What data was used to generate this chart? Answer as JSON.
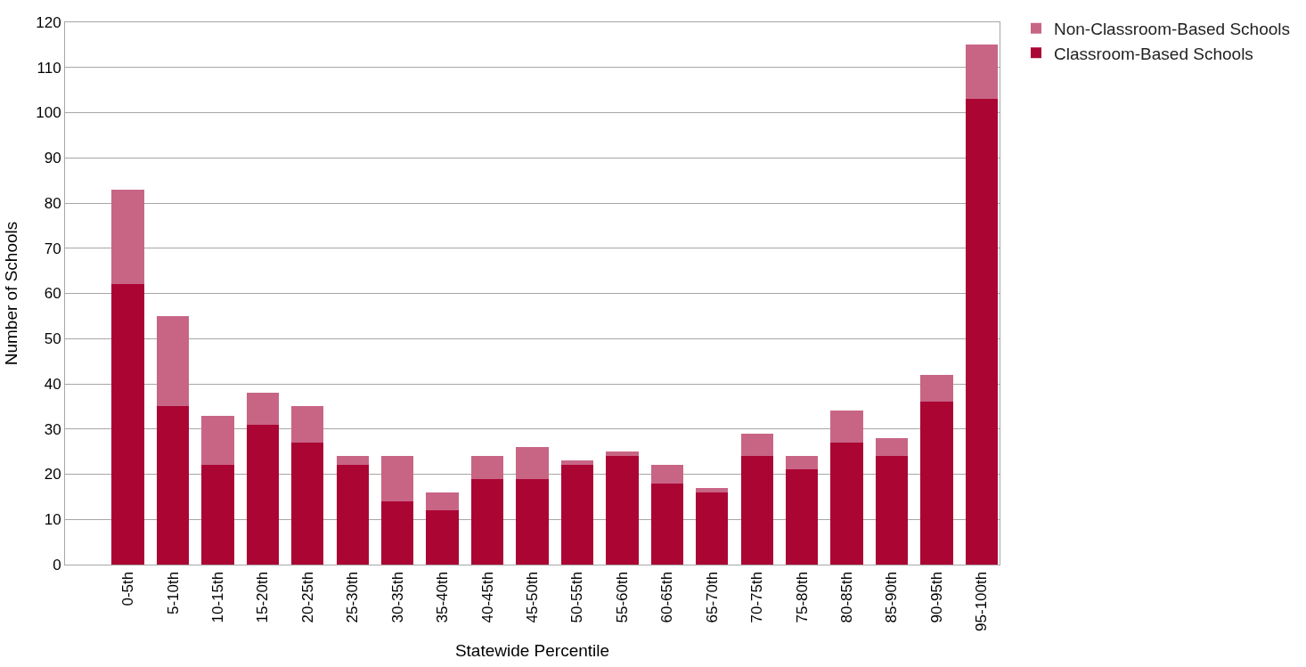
{
  "chart_data": {
    "type": "bar",
    "stacked": true,
    "xlabel": "Statewide Percentile",
    "ylabel": "Number of Schools",
    "categories": [
      "0-5th",
      "5-10th",
      "10-15th",
      "15-20th",
      "20-25th",
      "25-30th",
      "30-35th",
      "35-40th",
      "40-45th",
      "45-50th",
      "50-55th",
      "55-60th",
      "60-65th",
      "65-70th",
      "70-75th",
      "75-80th",
      "80-85th",
      "85-90th",
      "90-95th",
      "95-100th"
    ],
    "series": [
      {
        "name": "Classroom-Based Schools",
        "color": "#ab0534",
        "values": [
          62,
          35,
          22,
          31,
          27,
          22,
          14,
          12,
          19,
          19,
          22,
          24,
          18,
          16,
          24,
          21,
          27,
          24,
          36,
          103
        ]
      },
      {
        "name": "Non-Classroom-Based Schools",
        "color": "#c86585",
        "values": [
          21,
          20,
          11,
          7,
          8,
          2,
          10,
          4,
          5,
          7,
          1,
          1,
          4,
          1,
          5,
          3,
          7,
          4,
          6,
          12
        ]
      }
    ],
    "ylim": [
      0,
      120
    ],
    "yticks": [
      0,
      10,
      20,
      30,
      40,
      50,
      60,
      70,
      80,
      90,
      100,
      110,
      120
    ],
    "grid": "y",
    "legend": "top right"
  }
}
